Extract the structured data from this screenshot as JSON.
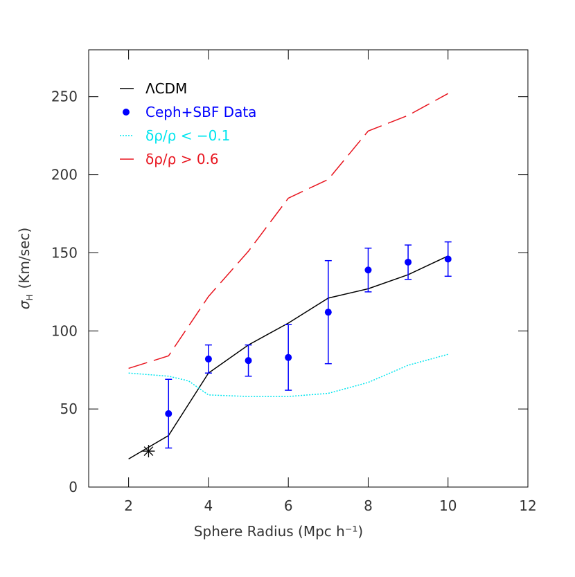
{
  "chart_data": {
    "type": "line",
    "x_label": "Sphere  Radius (Mpc h⁻¹)",
    "y_label": "σ",
    "y_label_sub": "H",
    "y_label_unit": "(Km/sec)",
    "xlim": [
      1,
      12
    ],
    "xticks": [
      2,
      4,
      6,
      8,
      10,
      12
    ],
    "ylim": [
      0,
      280
    ],
    "yticks": [
      0,
      50,
      100,
      150,
      200,
      250
    ],
    "series": [
      {
        "name": "ΛCDM",
        "color": "#000000",
        "style": "solid",
        "x": [
          2,
          3,
          4,
          5,
          6,
          7,
          8,
          9,
          10
        ],
        "values": [
          18,
          33,
          73,
          91,
          105,
          121,
          127,
          136,
          148
        ]
      },
      {
        "name": "Ceph+SBF Data",
        "color": "#0000ff",
        "style": "points",
        "x": [
          3,
          4,
          5,
          6,
          7,
          8,
          9,
          10
        ],
        "values": [
          47,
          82,
          81,
          83,
          112,
          139,
          144,
          146
        ],
        "errors": [
          22,
          9,
          10,
          21,
          33,
          14,
          11,
          11
        ]
      },
      {
        "name": "δρ/ρ < −0.1",
        "color": "#00e5ee",
        "style": "dotted",
        "x": [
          2,
          3,
          3.5,
          4,
          5,
          6,
          7,
          8,
          9,
          10
        ],
        "values": [
          73,
          71,
          68,
          59,
          58,
          58,
          60,
          67,
          78,
          85
        ]
      },
      {
        "name": "δρ/ρ >  0.6",
        "color": "#e8141e",
        "style": "dashed",
        "x": [
          2,
          3,
          4,
          5,
          6,
          7,
          8,
          9,
          10
        ],
        "values": [
          76,
          84,
          122,
          151,
          185,
          197,
          228,
          238,
          252
        ]
      }
    ],
    "star": {
      "x": [
        2.5
      ],
      "values": [
        23
      ]
    }
  }
}
